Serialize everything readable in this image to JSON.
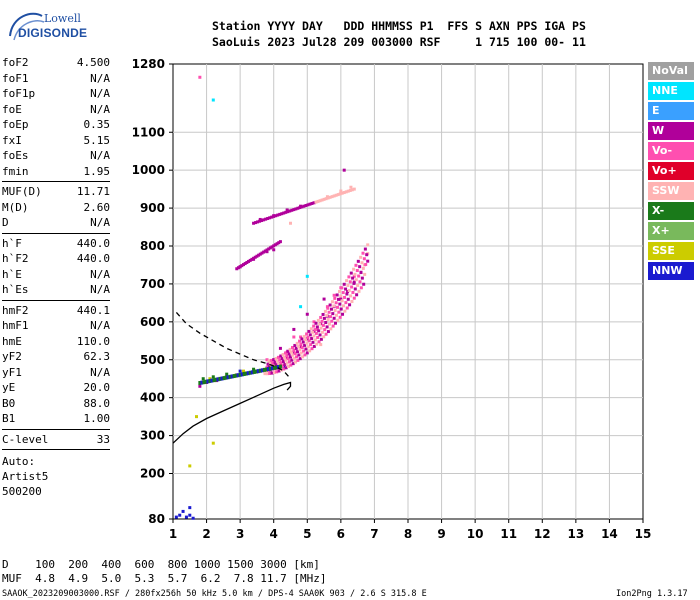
{
  "logo": {
    "line1": "Lowell",
    "line2": "DIGISONDE"
  },
  "header": {
    "line1": "Station YYYY DAY   DDD HHMMSS P1  FFS S AXN PPS IGA PS",
    "line2": "SaoLuis 2023 Jul28 209 003000 RSF     1 715 100 00- 11"
  },
  "params": [
    {
      "name": "foF2",
      "value": "4.500"
    },
    {
      "name": "foF1",
      "value": "N/A"
    },
    {
      "name": "foF1p",
      "value": "N/A"
    },
    {
      "name": "foE",
      "value": "N/A"
    },
    {
      "name": "foEp",
      "value": "0.35"
    },
    {
      "name": "fxI",
      "value": "5.15"
    },
    {
      "name": "foEs",
      "value": "N/A"
    },
    {
      "name": "fmin",
      "value": "1.95"
    },
    {
      "name": "MUF(D)",
      "value": "11.71"
    },
    {
      "name": "M(D)",
      "value": "2.60"
    },
    {
      "name": "D",
      "value": "N/A"
    },
    {
      "name": "h`F",
      "value": "440.0"
    },
    {
      "name": "h`F2",
      "value": "440.0"
    },
    {
      "name": "h`E",
      "value": "N/A"
    },
    {
      "name": "h`Es",
      "value": "N/A"
    },
    {
      "name": "hmF2",
      "value": "440.1"
    },
    {
      "name": "hmF1",
      "value": "N/A"
    },
    {
      "name": "hmE",
      "value": "110.0"
    },
    {
      "name": "yF2",
      "value": "62.3"
    },
    {
      "name": "yF1",
      "value": "N/A"
    },
    {
      "name": "yE",
      "value": "20.0"
    },
    {
      "name": "B0",
      "value": "88.0"
    },
    {
      "name": "B1",
      "value": "1.00"
    },
    {
      "name": "C-level",
      "value": "33"
    }
  ],
  "auto": {
    "label": "Auto:",
    "program": "Artist5",
    "version": "500200"
  },
  "legend": [
    {
      "label": "NoVal",
      "color": "#a0a0a0"
    },
    {
      "label": "NNE",
      "color": "#00e5ff"
    },
    {
      "label": "E",
      "color": "#3aa0ff"
    },
    {
      "label": "W",
      "color": "#b0009a"
    },
    {
      "label": "Vo-",
      "color": "#ff4fb0"
    },
    {
      "label": "Vo+",
      "color": "#e0002a"
    },
    {
      "label": "SSW",
      "color": "#ffb3b3"
    },
    {
      "label": "X-",
      "color": "#1a7a1a"
    },
    {
      "label": "X+",
      "color": "#79b95c"
    },
    {
      "label": "SSE",
      "color": "#cccc00"
    },
    {
      "label": "NNW",
      "color": "#1a1ad0"
    }
  ],
  "footer": {
    "d_row": "D    100  200  400  600  800 1000 1500 3000 [km]",
    "muf_row": "MUF  4.8  4.9  5.0  5.3  5.7  6.2  7.8 11.7 [MHz]",
    "bottom_left": "SAAOK_2023209003000.RSF / 280fx256h 50 kHz 5.0 km / DPS-4 SAA0K 903 / 2.6 S 315.8 E",
    "bottom_right": "Ion2Png 1.3.17"
  },
  "chart_data": {
    "type": "scatter",
    "x": {
      "min": 1,
      "max": 15,
      "ticks": [
        1,
        2,
        3,
        4,
        5,
        6,
        7,
        8,
        9,
        10,
        11,
        12,
        13,
        14,
        15
      ]
    },
    "y": {
      "min": 80,
      "max": 1280,
      "ticks": [
        80,
        200,
        300,
        400,
        500,
        600,
        700,
        800,
        900,
        1000,
        1100,
        1280
      ]
    },
    "grid": true,
    "series": [
      {
        "name": "W",
        "color": "#b0009a",
        "points": [
          [
            1.8,
            430
          ],
          [
            2.0,
            440
          ],
          [
            2.3,
            445
          ],
          [
            2.6,
            455
          ],
          [
            2.9,
            460
          ],
          [
            3.2,
            465
          ],
          [
            3.5,
            468
          ],
          [
            3.8,
            475
          ],
          [
            4.0,
            480
          ],
          [
            4.2,
            490
          ],
          [
            4.4,
            505
          ],
          [
            4.6,
            520
          ],
          [
            4.8,
            535
          ],
          [
            5.0,
            555
          ],
          [
            5.2,
            575
          ],
          [
            5.4,
            595
          ],
          [
            5.6,
            615
          ],
          [
            5.8,
            640
          ],
          [
            6.0,
            660
          ],
          [
            6.2,
            680
          ],
          [
            6.4,
            705
          ],
          [
            6.6,
            730
          ],
          [
            6.8,
            760
          ],
          [
            4.2,
            530
          ],
          [
            4.6,
            580
          ],
          [
            5.0,
            620
          ],
          [
            5.5,
            660
          ],
          [
            3.0,
            745
          ],
          [
            3.4,
            765
          ],
          [
            3.8,
            785
          ],
          [
            4.0,
            790
          ],
          [
            3.6,
            870
          ],
          [
            4.0,
            880
          ],
          [
            4.4,
            895
          ],
          [
            4.8,
            905
          ],
          [
            6.1,
            1000
          ]
        ]
      },
      {
        "name": "Vo-",
        "color": "#ff4fb0",
        "points": [
          [
            3.8,
            500
          ],
          [
            4.4,
            520
          ],
          [
            4.8,
            560
          ],
          [
            5.2,
            600
          ],
          [
            5.6,
            640
          ],
          [
            6.0,
            690
          ],
          [
            6.4,
            720
          ],
          [
            4.6,
            560
          ],
          [
            5.3,
            580
          ],
          [
            5.8,
            670
          ],
          [
            1.8,
            1245
          ]
        ]
      },
      {
        "name": "SSW",
        "color": "#ffb3b3",
        "points": [
          [
            5.6,
            930
          ],
          [
            6.0,
            945
          ],
          [
            6.3,
            955
          ],
          [
            6.8,
            780
          ],
          [
            6.7,
            750
          ],
          [
            5.4,
            540
          ],
          [
            4.5,
            860
          ]
        ]
      },
      {
        "name": "NNW",
        "color": "#1a1ad0",
        "points": [
          [
            1.1,
            85
          ],
          [
            1.2,
            90
          ],
          [
            1.4,
            85
          ],
          [
            1.5,
            90
          ],
          [
            1.6,
            82
          ],
          [
            1.3,
            100
          ],
          [
            1.5,
            110
          ],
          [
            3.0,
            470
          ],
          [
            3.6,
            470
          ],
          [
            4.3,
            480
          ]
        ]
      },
      {
        "name": "X-",
        "color": "#1a7a1a",
        "points": [
          [
            1.9,
            450
          ],
          [
            2.2,
            455
          ],
          [
            2.6,
            462
          ],
          [
            3.4,
            475
          ],
          [
            4.0,
            488
          ]
        ]
      },
      {
        "name": "SSE",
        "color": "#cccc00",
        "points": [
          [
            1.5,
            220
          ],
          [
            2.2,
            280
          ],
          [
            2.1,
            450
          ],
          [
            3.1,
            470
          ],
          [
            3.9,
            490
          ],
          [
            1.7,
            350
          ]
        ]
      },
      {
        "name": "NNE",
        "color": "#00e5ff",
        "points": [
          [
            2.2,
            1185
          ],
          [
            4.8,
            640
          ],
          [
            5.0,
            720
          ]
        ]
      }
    ],
    "lines": [
      {
        "name": "profile-solid",
        "style": "solid",
        "points": [
          [
            1.0,
            280
          ],
          [
            1.3,
            305
          ],
          [
            1.6,
            325
          ],
          [
            2.0,
            345
          ],
          [
            2.5,
            365
          ],
          [
            3.0,
            385
          ],
          [
            3.5,
            405
          ],
          [
            4.0,
            425
          ],
          [
            4.3,
            435
          ],
          [
            4.5,
            440
          ],
          [
            4.5,
            430
          ],
          [
            4.4,
            420
          ]
        ]
      },
      {
        "name": "profile-dashed",
        "style": "dashed",
        "points": [
          [
            1.1,
            625
          ],
          [
            1.4,
            595
          ],
          [
            1.8,
            570
          ],
          [
            2.2,
            550
          ],
          [
            2.6,
            530
          ],
          [
            3.0,
            515
          ],
          [
            3.4,
            500
          ],
          [
            3.8,
            490
          ],
          [
            4.1,
            480
          ],
          [
            4.3,
            470
          ],
          [
            4.5,
            450
          ]
        ]
      }
    ]
  }
}
